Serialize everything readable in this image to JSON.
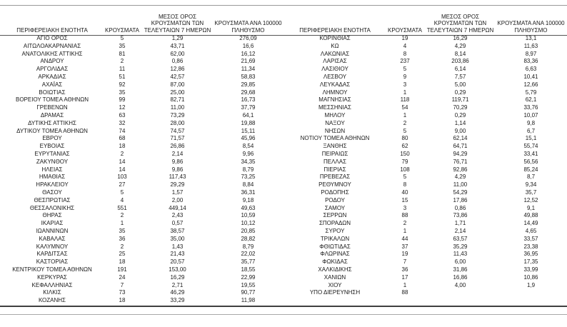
{
  "table": {
    "headers": [
      "ΠΕΡΙΦΕΡΕΙΑΚΗ ΕΝΟΤΗΤΑ",
      "ΚΡΟΥΣΜΑΤΑ",
      "ΜΕΣΟΣ ΟΡΟΣ ΚΡΟΥΣΜΑΤΩΝ ΤΩΝ ΤΕΛΕΥΤΑΙΩΝ 7 ΗΜΕΡΩΝ",
      "ΚΡΟΥΣΜΑΤΑ ΑΝΑ 100000 ΠΛΗΘΥΣΜΟ"
    ],
    "left_rows": [
      [
        "ΑΓΙΟ ΟΡΟΣ",
        "5",
        "1,29",
        "276,09"
      ],
      [
        "ΑΙΤΩΛΟΑΚΑΡΝΑΝΙΑΣ",
        "35",
        "43,71",
        "16,6"
      ],
      [
        "ΑΝΑΤΟΛΙΚΗΣ ΑΤΤΙΚΗΣ",
        "81",
        "62,00",
        "16,12"
      ],
      [
        "ΑΝΔΡΟΥ",
        "2",
        "0,86",
        "21,69"
      ],
      [
        "ΑΡΓΟΛΙΔΑΣ",
        "11",
        "12,86",
        "11,34"
      ],
      [
        "ΑΡΚΑΔΙΑΣ",
        "51",
        "42,57",
        "58,83"
      ],
      [
        "ΑΧΑΪΑΣ",
        "92",
        "87,00",
        "29,85"
      ],
      [
        "ΒΟΙΩΤΙΑΣ",
        "35",
        "25,00",
        "29,68"
      ],
      [
        "ΒΟΡΕΙΟΥ ΤΟΜΕΑ ΑΘΗΝΩΝ",
        "99",
        "82,71",
        "16,73"
      ],
      [
        "ΓΡΕΒΕΝΩΝ",
        "12",
        "11,00",
        "37,79"
      ],
      [
        "ΔΡΑΜΑΣ",
        "63",
        "73,29",
        "64,1"
      ],
      [
        "ΔΥΤΙΚΗΣ ΑΤΤΙΚΗΣ",
        "32",
        "28,00",
        "19,88"
      ],
      [
        "ΔΥΤΙΚΟΥ ΤΟΜΕΑ ΑΘΗΝΩΝ",
        "74",
        "74,57",
        "15,11"
      ],
      [
        "ΕΒΡΟΥ",
        "68",
        "71,57",
        "45,96"
      ],
      [
        "ΕΥΒΟΙΑΣ",
        "18",
        "26,86",
        "8,54"
      ],
      [
        "ΕΥΡΥΤΑΝΙΑΣ",
        "2",
        "2,14",
        "9,96"
      ],
      [
        "ΖΑΚΥΝΘΟΥ",
        "14",
        "9,86",
        "34,35"
      ],
      [
        "ΗΛΕΙΑΣ",
        "14",
        "9,86",
        "8,79"
      ],
      [
        "ΗΜΑΘΙΑΣ",
        "103",
        "117,43",
        "73,25"
      ],
      [
        "ΗΡΑΚΛΕΙΟΥ",
        "27",
        "29,29",
        "8,84"
      ],
      [
        "ΘΑΣΟΥ",
        "5",
        "1,57",
        "36,31"
      ],
      [
        "ΘΕΣΠΡΩΤΙΑΣ",
        "4",
        "2,00",
        "9,18"
      ],
      [
        "ΘΕΣΣΑΛΟΝΙΚΗΣ",
        "551",
        "449,14",
        "49,63"
      ],
      [
        "ΘΗΡΑΣ",
        "2",
        "2,43",
        "10,59"
      ],
      [
        "ΙΚΑΡΙΑΣ",
        "1",
        "0,57",
        "10,12"
      ],
      [
        "ΙΩΑΝΝΙΝΩΝ",
        "35",
        "38,57",
        "20,85"
      ],
      [
        "ΚΑΒΑΛΑΣ",
        "36",
        "35,00",
        "28,82"
      ],
      [
        "ΚΑΛΥΜΝΟΥ",
        "2",
        "1,43",
        "8,79"
      ],
      [
        "ΚΑΡΔΙΤΣΑΣ",
        "25",
        "21,43",
        "22,02"
      ],
      [
        "ΚΑΣΤΟΡΙΑΣ",
        "18",
        "20,57",
        "35,77"
      ],
      [
        "ΚΕΝΤΡΙΚΟΥ ΤΟΜΕΑ ΑΘΗΝΩΝ",
        "191",
        "153,00",
        "18,55"
      ],
      [
        "ΚΕΡΚΥΡΑΣ",
        "24",
        "16,29",
        "22,99"
      ],
      [
        "ΚΕΦΑΛΛΗΝΙΑΣ",
        "7",
        "2,71",
        "19,55"
      ],
      [
        "ΚΙΛΚΙΣ",
        "73",
        "46,29",
        "90,77"
      ],
      [
        "ΚΟΖΑΝΗΣ",
        "18",
        "33,29",
        "11,98"
      ]
    ],
    "right_rows": [
      [
        "ΚΟΡΙΝΘΙΑΣ",
        "19",
        "16,29",
        "13,1"
      ],
      [
        "ΚΩ",
        "4",
        "4,29",
        "11,63"
      ],
      [
        "ΛΑΚΩΝΙΑΣ",
        "8",
        "8,14",
        "8,97"
      ],
      [
        "ΛΑΡΙΣΑΣ",
        "237",
        "203,86",
        "83,36"
      ],
      [
        "ΛΑΣΙΘΙΟΥ",
        "5",
        "6,14",
        "6,63"
      ],
      [
        "ΛΕΣΒΟΥ",
        "9",
        "7,57",
        "10,41"
      ],
      [
        "ΛΕΥΚΑΔΑΣ",
        "3",
        "5,00",
        "12,66"
      ],
      [
        "ΛΗΜΝΟΥ",
        "1",
        "0,29",
        "5,79"
      ],
      [
        "ΜΑΓΝΗΣΙΑΣ",
        "118",
        "119,71",
        "62,1"
      ],
      [
        "ΜΕΣΣΗΝΙΑΣ",
        "54",
        "70,29",
        "33,76"
      ],
      [
        "ΜΗΛΟΥ",
        "1",
        "0,29",
        "10,07"
      ],
      [
        "ΝΑΞΟΥ",
        "2",
        "1,14",
        "9,8"
      ],
      [
        "ΝΗΣΩΝ",
        "5",
        "9,00",
        "6,7"
      ],
      [
        "ΝΟΤΙΟΥ ΤΟΜΕΑ ΑΘΗΝΩΝ",
        "80",
        "62,14",
        "15,1"
      ],
      [
        "ΞΑΝΘΗΣ",
        "62",
        "64,71",
        "55,74"
      ],
      [
        "ΠΕΙΡΑΙΩΣ",
        "150",
        "94,29",
        "33,41"
      ],
      [
        "ΠΕΛΛΑΣ",
        "79",
        "76,71",
        "56,56"
      ],
      [
        "ΠΙΕΡΙΑΣ",
        "108",
        "92,86",
        "85,24"
      ],
      [
        "ΠΡΕΒΕΖΑΣ",
        "5",
        "4,29",
        "8,7"
      ],
      [
        "ΡΕΘΥΜΝΟΥ",
        "8",
        "11,00",
        "9,34"
      ],
      [
        "ΡΟΔΟΠΗΣ",
        "40",
        "54,29",
        "35,7"
      ],
      [
        "ΡΟΔΟΥ",
        "15",
        "17,86",
        "12,52"
      ],
      [
        "ΣΑΜΟΥ",
        "3",
        "0,86",
        "9,1"
      ],
      [
        "ΣΕΡΡΩΝ",
        "88",
        "73,86",
        "49,88"
      ],
      [
        "ΣΠΟΡΑΔΩΝ",
        "2",
        "1,71",
        "14,49"
      ],
      [
        "ΣΥΡΟΥ",
        "1",
        "2,14",
        "4,65"
      ],
      [
        "ΤΡΙΚΑΛΩΝ",
        "44",
        "63,57",
        "33,57"
      ],
      [
        "ΦΘΙΩΤΙΔΑΣ",
        "37",
        "35,29",
        "23,38"
      ],
      [
        "ΦΛΩΡΙΝΑΣ",
        "19",
        "11,43",
        "36,95"
      ],
      [
        "ΦΩΚΙΔΑΣ",
        "7",
        "6,00",
        "17,35"
      ],
      [
        "ΧΑΛΚΙΔΙΚΗΣ",
        "36",
        "31,86",
        "33,99"
      ],
      [
        "ΧΑΝΙΩΝ",
        "17",
        "16,86",
        "10,86"
      ],
      [
        "ΧΙΟΥ",
        "1",
        "4,00",
        "1,9"
      ],
      [
        "ΥΠΟ ΔΙΕΡΕΥΝΗΣΗ",
        "88",
        "",
        ""
      ]
    ]
  },
  "colors": {
    "background": "#ffffff",
    "text": "#1a1a1a",
    "line_dark": "#3f3f3f",
    "line_light": "#a8a8a8"
  }
}
